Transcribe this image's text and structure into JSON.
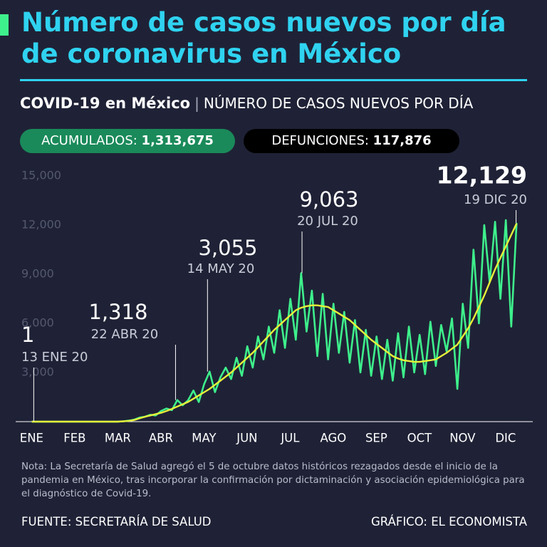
{
  "chart_data": {
    "type": "line",
    "title": "Número de casos nuevos por día de coronavirus en México",
    "subtitle": "COVID-19 en México",
    "subtitle_detail": "NÚMERO DE CASOS NUEVOS POR DÍA",
    "badges": [
      {
        "label": "ACUMULADOS:",
        "value": "1,313,675"
      },
      {
        "label": "DEFUNCIONES:",
        "value": "117,876"
      }
    ],
    "categories": [
      "ENE",
      null,
      null,
      null,
      null,
      null,
      null,
      null,
      "FEB",
      null,
      null,
      null,
      null,
      null,
      null,
      null,
      "MAR",
      null,
      null,
      null,
      null,
      null,
      null,
      null,
      "ABR",
      null,
      null,
      null,
      null,
      null,
      null,
      null,
      "MAY",
      null,
      null,
      null,
      null,
      null,
      null,
      null,
      "JUN",
      null,
      null,
      null,
      null,
      null,
      null,
      null,
      "JUL",
      null,
      null,
      null,
      null,
      null,
      null,
      null,
      "AGO",
      null,
      null,
      null,
      null,
      null,
      null,
      null,
      "SEP",
      null,
      null,
      null,
      null,
      null,
      null,
      null,
      "OCT",
      null,
      null,
      null,
      null,
      null,
      null,
      null,
      "NOV",
      null,
      null,
      null,
      null,
      null,
      null,
      null,
      "DIC",
      null,
      null,
      null,
      null,
      null
    ],
    "series": [
      {
        "color": "#3ef08c",
        "values": [
          null,
          null,
          null,
          0,
          0,
          0,
          0,
          0,
          0,
          0,
          0,
          0,
          0,
          0,
          0,
          0,
          0,
          0,
          1,
          5,
          20,
          60,
          120,
          250,
          300,
          420,
          380,
          650,
          800,
          700,
          1318,
          1000,
          1300,
          1900,
          1200,
          2300,
          3055,
          1800,
          2700,
          3300,
          2600,
          3900,
          2800,
          4600,
          3300,
          5200,
          3800,
          5800,
          4200,
          6800,
          4500,
          7500,
          5000,
          9063,
          5500,
          8000,
          4000,
          7800,
          3800,
          7200,
          4200,
          6700,
          3600,
          6200,
          3000,
          5600,
          2800,
          5200,
          2600,
          5000,
          2500,
          5400,
          2700,
          5800,
          3000,
          5300,
          2900,
          6100,
          3400,
          5900,
          4300,
          6300,
          2000,
          7200,
          4500,
          10500,
          6000,
          12000,
          8500,
          12200,
          7500,
          12300,
          5800,
          12129
        ]
      },
      {
        "color": "#e6f03a",
        "values": [
          null,
          null,
          null,
          0,
          0,
          0,
          0,
          0,
          0,
          0,
          0,
          0,
          0,
          0,
          0,
          0,
          0,
          0,
          0,
          0,
          20,
          50,
          100,
          200,
          300,
          380,
          460,
          540,
          650,
          780,
          920,
          1060,
          1200,
          1400,
          1600,
          1800,
          2000,
          2250,
          2500,
          2750,
          3000,
          3300,
          3600,
          3900,
          4200,
          4550,
          4900,
          5250,
          5600,
          5900,
          6200,
          6500,
          6800,
          6950,
          7050,
          7100,
          7100,
          7050,
          7000,
          6800,
          6600,
          6400,
          6200,
          5900,
          5600,
          5300,
          5000,
          4750,
          4500,
          4250,
          4000,
          3850,
          3750,
          3700,
          3650,
          3650,
          3700,
          3750,
          3800,
          4000,
          4200,
          4450,
          4700,
          5200,
          5700,
          6300,
          7000,
          7700,
          8500,
          9300,
          10000,
          10700,
          11400,
          12100
        ]
      }
    ],
    "ylim": [
      0,
      15000
    ],
    "yticks": [
      {
        "value": 3000,
        "label": "3,000"
      },
      {
        "value": 6000,
        "label": "6,000"
      },
      {
        "value": 9000,
        "label": "9,000"
      },
      {
        "value": 12000,
        "label": "12,000"
      },
      {
        "value": 15000,
        "label": "15,000"
      }
    ],
    "grid": false,
    "annotations": [
      {
        "value": 1,
        "label": "1",
        "date": "13 ENE 20"
      },
      {
        "value": 1318,
        "label": "1,318",
        "date": "22 ABR 20"
      },
      {
        "value": 3055,
        "label": "3,055",
        "date": "14 MAY 20"
      },
      {
        "value": 9063,
        "label": "9,063",
        "date": "20 JUL 20"
      },
      {
        "value": 12129,
        "label": "12,129",
        "date": "19 DIC 20"
      }
    ],
    "note": "Nota: La Secretaría de Salud agregó el 5 de octubre datos históricos rezagados desde el inicio de la pandemia en México, tras incorporar la confirmación por dictaminación y asociación epidemiológica para el diagnóstico de Covid-19.",
    "source": "FUENTE: SECRETARÍA DE SALUD",
    "credit": "GRÁFICO: EL ECONOMISTA"
  }
}
